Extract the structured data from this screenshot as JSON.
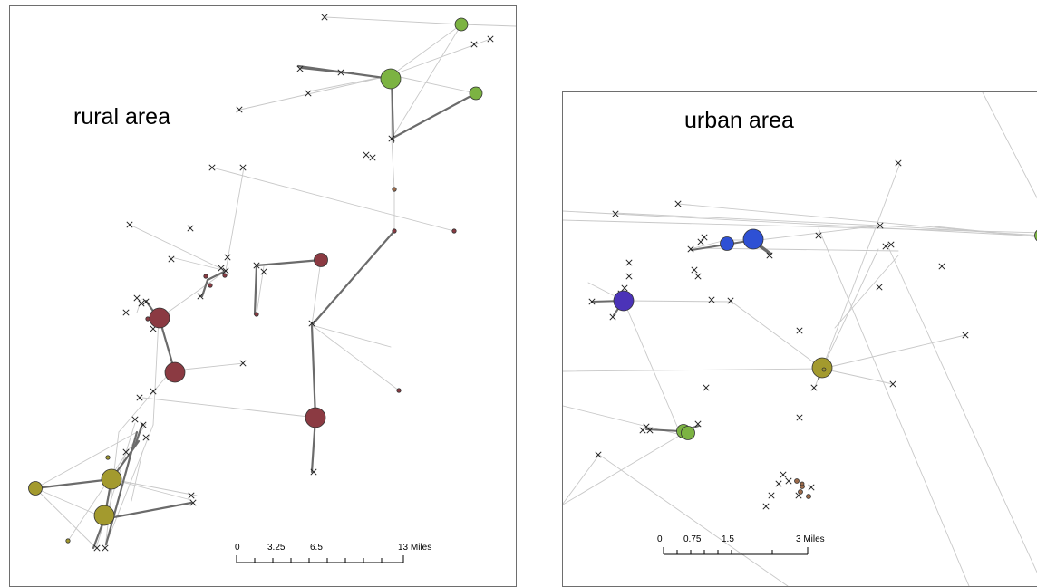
{
  "rural": {
    "title": "rural area",
    "scale_labels": [
      "0",
      "3.25",
      "6.5",
      "13 Miles"
    ]
  },
  "urban": {
    "title": "urban area",
    "scale_labels": [
      "0",
      "0.75",
      "1.5",
      "3 Miles"
    ]
  },
  "colors": {
    "green": "#7cb342",
    "maroon": "#8b3a42",
    "olive": "#a39a2e",
    "blue": "#2e50d4",
    "purple": "#4b33b8",
    "link_light": "#c8c8c8",
    "link_dark": "#6b6b6b",
    "small_point": "#9b6a4a"
  },
  "legend_symbols": {
    "cross_marker": "x-marker-icon",
    "circle_marker": "circle-node-icon"
  }
}
